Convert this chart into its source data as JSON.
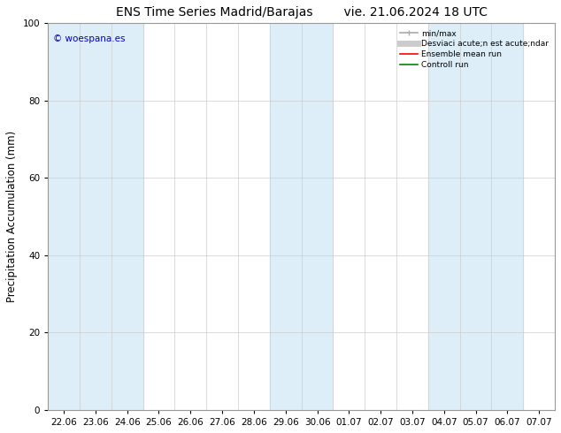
{
  "title": "ENS Time Series Madrid/Barajas",
  "title_right": "vie. 21.06.2024 18 UTC",
  "ylabel": "Precipitation Accumulation (mm)",
  "ylim": [
    0,
    100
  ],
  "yticks": [
    0,
    20,
    40,
    60,
    80,
    100
  ],
  "x_labels": [
    "22.06",
    "23.06",
    "24.06",
    "25.06",
    "26.06",
    "27.06",
    "28.06",
    "29.06",
    "30.06",
    "01.07",
    "02.07",
    "03.07",
    "04.07",
    "05.07",
    "06.07",
    "07.07"
  ],
  "band_color": "#ddeef8",
  "bg_color": "#ffffff",
  "plot_bg_color": "#ffffff",
  "shaded_indices": [
    0,
    1,
    2,
    7,
    8,
    12,
    13,
    14
  ],
  "legend_labels": [
    "min/max",
    "Desviaci acute;n est acute;ndar",
    "Ensemble mean run",
    "Controll run"
  ],
  "legend_colors": [
    "#aaaaaa",
    "#cccccc",
    "#ff0000",
    "#008800"
  ],
  "watermark": "© woespana.es",
  "watermark_color": "#0000cc",
  "title_fontsize": 10,
  "axis_fontsize": 7.5,
  "label_fontsize": 8.5
}
